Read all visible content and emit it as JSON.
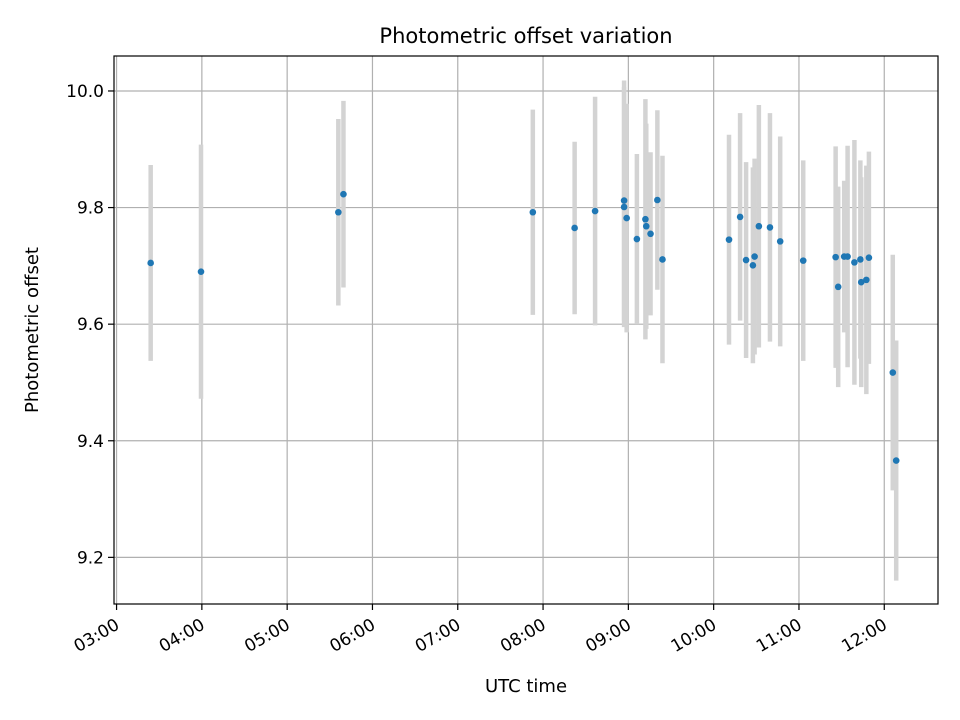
{
  "chart_data": {
    "type": "scatter",
    "title": "Photometric offset variation",
    "xlabel": "UTC time",
    "ylabel": "Photometric offset",
    "x_unit": "hours UTC",
    "xlim": [
      2.97,
      12.63
    ],
    "ylim": [
      9.12,
      10.06
    ],
    "x_ticks": [
      3,
      4,
      5,
      6,
      7,
      8,
      9,
      10,
      11,
      12
    ],
    "x_tick_labels": [
      "03:00",
      "04:00",
      "05:00",
      "06:00",
      "07:00",
      "08:00",
      "09:00",
      "10:00",
      "11:00",
      "12:00"
    ],
    "y_ticks": [
      9.2,
      9.4,
      9.6,
      9.8,
      10.0
    ],
    "y_tick_labels": [
      "9.2",
      "9.4",
      "9.6",
      "9.8",
      "10.0"
    ],
    "grid": true,
    "point_color": "#1f77b4",
    "errorbar_color": "#d3d3d3",
    "points": [
      {
        "x": 3.4,
        "y": 9.705,
        "err": 0.168
      },
      {
        "x": 3.99,
        "y": 9.69,
        "err": 0.218
      },
      {
        "x": 5.6,
        "y": 9.792,
        "err": 0.16
      },
      {
        "x": 5.66,
        "y": 9.823,
        "err": 0.16
      },
      {
        "x": 7.88,
        "y": 9.792,
        "err": 0.176
      },
      {
        "x": 8.37,
        "y": 9.765,
        "err": 0.148
      },
      {
        "x": 8.61,
        "y": 9.794,
        "err": 0.196
      },
      {
        "x": 8.95,
        "y": 9.812,
        "err": 0.206
      },
      {
        "x": 8.95,
        "y": 9.801,
        "err": 0.206
      },
      {
        "x": 8.98,
        "y": 9.782,
        "err": 0.196
      },
      {
        "x": 9.1,
        "y": 9.746,
        "err": 0.146
      },
      {
        "x": 9.2,
        "y": 9.78,
        "err": 0.206
      },
      {
        "x": 9.21,
        "y": 9.768,
        "err": 0.176
      },
      {
        "x": 9.26,
        "y": 9.755,
        "err": 0.14
      },
      {
        "x": 9.34,
        "y": 9.813,
        "err": 0.154
      },
      {
        "x": 9.4,
        "y": 9.711,
        "err": 0.178
      },
      {
        "x": 10.18,
        "y": 9.745,
        "err": 0.18
      },
      {
        "x": 10.31,
        "y": 9.784,
        "err": 0.178
      },
      {
        "x": 10.38,
        "y": 9.71,
        "err": 0.168
      },
      {
        "x": 10.46,
        "y": 9.701,
        "err": 0.168
      },
      {
        "x": 10.48,
        "y": 9.716,
        "err": 0.168
      },
      {
        "x": 10.53,
        "y": 9.768,
        "err": 0.208
      },
      {
        "x": 10.66,
        "y": 9.766,
        "err": 0.196
      },
      {
        "x": 10.78,
        "y": 9.742,
        "err": 0.18
      },
      {
        "x": 11.05,
        "y": 9.709,
        "err": 0.172
      },
      {
        "x": 11.43,
        "y": 9.715,
        "err": 0.19
      },
      {
        "x": 11.46,
        "y": 9.664,
        "err": 0.172
      },
      {
        "x": 11.53,
        "y": 9.716,
        "err": 0.13
      },
      {
        "x": 11.57,
        "y": 9.716,
        "err": 0.19
      },
      {
        "x": 11.65,
        "y": 9.706,
        "err": 0.21
      },
      {
        "x": 11.72,
        "y": 9.711,
        "err": 0.17
      },
      {
        "x": 11.73,
        "y": 9.672,
        "err": 0.18
      },
      {
        "x": 11.79,
        "y": 9.676,
        "err": 0.196
      },
      {
        "x": 11.82,
        "y": 9.714,
        "err": 0.182
      },
      {
        "x": 12.1,
        "y": 9.517,
        "err": 0.202
      },
      {
        "x": 12.14,
        "y": 9.366,
        "err": 0.206
      }
    ]
  }
}
